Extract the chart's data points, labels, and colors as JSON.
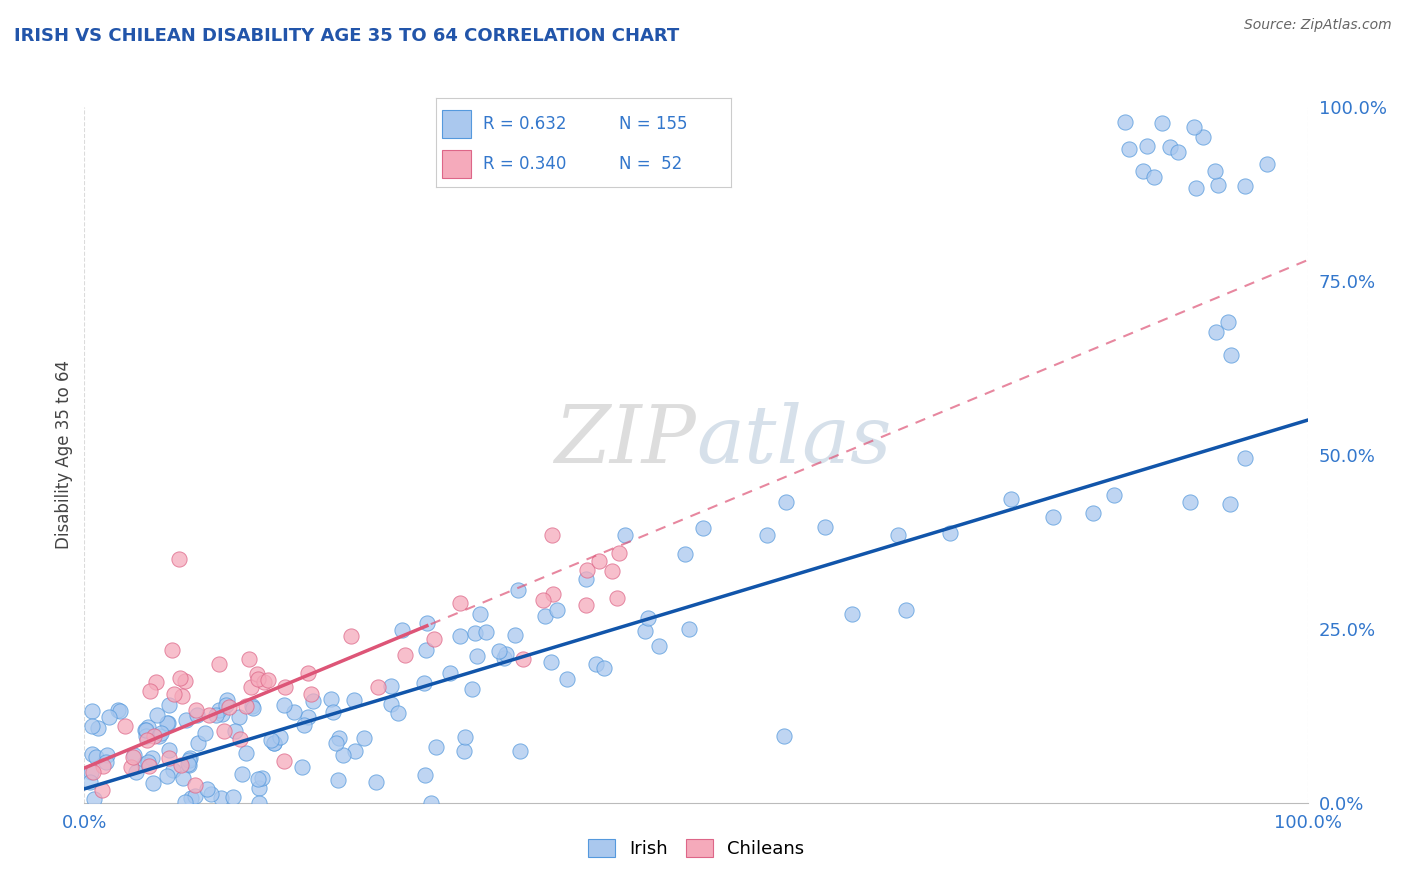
{
  "title": "IRISH VS CHILEAN DISABILITY AGE 35 TO 64 CORRELATION CHART",
  "source": "Source: ZipAtlas.com",
  "ylabel": "Disability Age 35 to 64",
  "irish_R": 0.632,
  "irish_N": 155,
  "chilean_R": 0.34,
  "chilean_N": 52,
  "irish_color": "#aac8ee",
  "irish_edge_color": "#5599dd",
  "chilean_color": "#f5aabb",
  "chilean_edge_color": "#dd6688",
  "irish_line_color": "#1155aa",
  "chilean_line_color": "#dd5577",
  "title_color": "#2255aa",
  "source_color": "#666666",
  "label_color": "#3377cc",
  "background_color": "#ffffff",
  "grid_color": "#cccccc",
  "watermark_color": "#dddddd",
  "irish_line_x0": 0.0,
  "irish_line_y0": 0.02,
  "irish_line_x1": 1.0,
  "irish_line_y1": 0.55,
  "chilean_line_x0": 0.0,
  "chilean_line_y0": 0.05,
  "chilean_line_x1": 1.0,
  "chilean_line_y1": 0.78,
  "xlim": [
    0.0,
    1.0
  ],
  "ylim": [
    0.0,
    1.0
  ],
  "xticks": [
    0.0,
    1.0
  ],
  "yticks_right": [
    0.0,
    0.25,
    0.5,
    0.75,
    1.0
  ],
  "xticklabels": [
    "0.0%",
    "100.0%"
  ],
  "yticklabels_right": [
    "0.0%",
    "25.0%",
    "50.0%",
    "75.0%",
    "100.0%"
  ],
  "legend_label_irish": "Irish",
  "legend_label_chilean": "Chileans"
}
